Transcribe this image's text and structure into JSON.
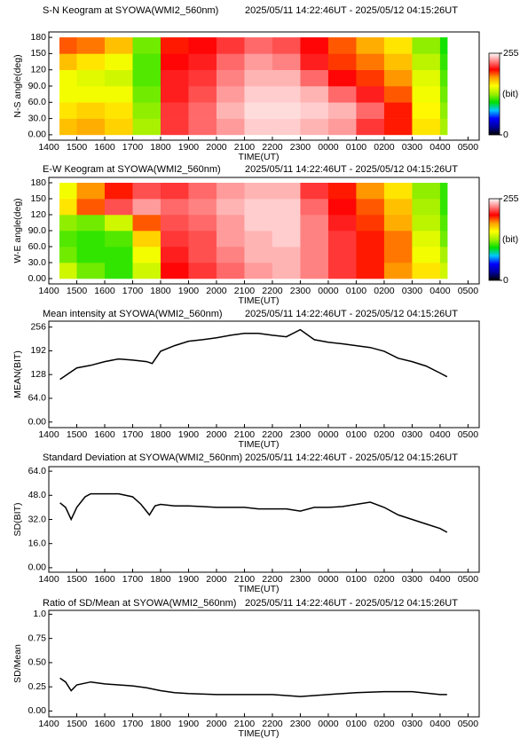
{
  "chart_data": [
    {
      "type": "heatmap",
      "title": "S-N Keogram at SYOWA(WMI2_560nm)",
      "subtitle": "2025/05/11 14:22:46UT - 2025/05/12 04:15:26UT",
      "xlabel": "TIME(UT)",
      "ylabel": "N-S angle(deg)",
      "x_bins": [
        14.38,
        15,
        16,
        17,
        18,
        19,
        20,
        21,
        22,
        23,
        24,
        25,
        26,
        27,
        28,
        28.26
      ],
      "y_bins": [
        0,
        30,
        60,
        90,
        120,
        150,
        180
      ],
      "values": [
        [
          170,
          175,
          165,
          130,
          215,
          225,
          235,
          245,
          245,
          240,
          235,
          215,
          200,
          160,
          130
        ],
        [
          160,
          165,
          160,
          125,
          215,
          225,
          240,
          248,
          248,
          245,
          240,
          225,
          200,
          155,
          125
        ],
        [
          150,
          150,
          150,
          120,
          210,
          220,
          235,
          245,
          245,
          240,
          225,
          210,
          190,
          150,
          120
        ],
        [
          150,
          145,
          140,
          115,
          210,
          215,
          230,
          240,
          240,
          225,
          205,
          195,
          180,
          145,
          115
        ],
        [
          170,
          160,
          150,
          115,
          205,
          210,
          225,
          235,
          230,
          210,
          195,
          185,
          170,
          135,
          110
        ],
        [
          190,
          185,
          170,
          120,
          200,
          205,
          215,
          225,
          220,
          205,
          190,
          175,
          160,
          125,
          105
        ]
      ],
      "clim": [
        0,
        255
      ],
      "colorbar": {
        "ticks": [
          0,
          255
        ],
        "label": "(bit)"
      },
      "colormap": [
        "#000000",
        "#0000a0",
        "#0000ff",
        "#00c8ff",
        "#00e000",
        "#a0f000",
        "#ffff00",
        "#ffa000",
        "#ff0000",
        "#ff8080",
        "#ffffff"
      ],
      "xlim": [
        14,
        29.4
      ],
      "ylim": [
        -10,
        190
      ],
      "xticks": [
        {
          "value": 14,
          "label": "1400"
        },
        {
          "value": 15,
          "label": "1500"
        },
        {
          "value": 16,
          "label": "1600"
        },
        {
          "value": 17,
          "label": "1700"
        },
        {
          "value": 18,
          "label": "1800"
        },
        {
          "value": 19,
          "label": "1900"
        },
        {
          "value": 20,
          "label": "2000"
        },
        {
          "value": 21,
          "label": "2100"
        },
        {
          "value": 22,
          "label": "2200"
        },
        {
          "value": 23,
          "label": "2300"
        },
        {
          "value": 24,
          "label": "0000"
        },
        {
          "value": 25,
          "label": "0100"
        },
        {
          "value": 26,
          "label": "0200"
        },
        {
          "value": 27,
          "label": "0300"
        },
        {
          "value": 28,
          "label": "0400"
        },
        {
          "value": 29,
          "label": "0500"
        }
      ],
      "yticks": [
        {
          "value": 0,
          "label": "0.00"
        },
        {
          "value": 30,
          "label": "30.0"
        },
        {
          "value": 60,
          "label": "60.0"
        },
        {
          "value": 90,
          "label": "90.0"
        },
        120,
        150,
        180
      ]
    },
    {
      "type": "heatmap",
      "title": "E-W Keogram at SYOWA(WMI2_560nm)",
      "subtitle": "2025/05/11 14:22:46UT - 2025/05/12 04:15:26UT",
      "xlabel": "TIME(UT)",
      "ylabel": "W-E angle(deg)",
      "x_bins": [
        14.38,
        15,
        16,
        17,
        18,
        19,
        20,
        21,
        22,
        23,
        24,
        25,
        26,
        27,
        28,
        28.26
      ],
      "y_bins": [
        0,
        30,
        60,
        90,
        120,
        150,
        180
      ],
      "values": [
        [
          140,
          120,
          110,
          140,
          205,
          215,
          225,
          235,
          240,
          230,
          215,
          200,
          180,
          160,
          140
        ],
        [
          120,
          110,
          110,
          150,
          210,
          220,
          230,
          240,
          240,
          230,
          215,
          200,
          185,
          150,
          130
        ],
        [
          115,
          110,
          115,
          165,
          215,
          220,
          235,
          240,
          245,
          230,
          215,
          200,
          185,
          145,
          120
        ],
        [
          125,
          120,
          140,
          190,
          220,
          225,
          235,
          245,
          245,
          230,
          210,
          195,
          175,
          135,
          115
        ],
        [
          160,
          190,
          220,
          235,
          225,
          230,
          240,
          245,
          245,
          225,
          205,
          190,
          170,
          130,
          110
        ],
        [
          150,
          180,
          200,
          220,
          215,
          225,
          235,
          240,
          240,
          215,
          200,
          180,
          160,
          125,
          110
        ]
      ],
      "clim": [
        0,
        255
      ],
      "colorbar": {
        "ticks": [
          0,
          255
        ],
        "label": "(bit)"
      },
      "colormap": [
        "#000000",
        "#0000a0",
        "#0000ff",
        "#00c8ff",
        "#00e000",
        "#a0f000",
        "#ffff00",
        "#ffa000",
        "#ff0000",
        "#ff8080",
        "#ffffff"
      ],
      "xlim": [
        14,
        29.4
      ],
      "ylim": [
        -10,
        190
      ],
      "xticks": [
        {
          "value": 14,
          "label": "1400"
        },
        {
          "value": 15,
          "label": "1500"
        },
        {
          "value": 16,
          "label": "1600"
        },
        {
          "value": 17,
          "label": "1700"
        },
        {
          "value": 18,
          "label": "1800"
        },
        {
          "value": 19,
          "label": "1900"
        },
        {
          "value": 20,
          "label": "2000"
        },
        {
          "value": 21,
          "label": "2100"
        },
        {
          "value": 22,
          "label": "2200"
        },
        {
          "value": 23,
          "label": "2300"
        },
        {
          "value": 24,
          "label": "0000"
        },
        {
          "value": 25,
          "label": "0100"
        },
        {
          "value": 26,
          "label": "0200"
        },
        {
          "value": 27,
          "label": "0300"
        },
        {
          "value": 28,
          "label": "0400"
        },
        {
          "value": 29,
          "label": "0500"
        }
      ],
      "yticks": [
        {
          "value": 0,
          "label": "0.00"
        },
        {
          "value": 30,
          "label": "30.0"
        },
        {
          "value": 60,
          "label": "60.0"
        },
        {
          "value": 90,
          "label": "90.0"
        },
        120,
        150,
        180
      ]
    },
    {
      "type": "line",
      "title": "Mean intensity at SYOWA(WMI2_560nm)",
      "subtitle": "2025/05/11 14:22:46UT - 2025/05/12 04:15:26UT",
      "xlabel": "TIME(UT)",
      "ylabel": "MEAN(BIT)",
      "color": "#000000",
      "x": [
        14.4,
        15,
        15.5,
        16,
        16.5,
        17,
        17.5,
        17.7,
        18,
        18.5,
        19,
        19.5,
        20,
        20.5,
        21,
        21.5,
        22,
        22.5,
        23,
        23.5,
        24,
        24.5,
        25,
        25.5,
        26,
        26.5,
        27,
        27.5,
        28,
        28.25
      ],
      "values": [
        115,
        146,
        153,
        163,
        170,
        167,
        163,
        158,
        191,
        206,
        218,
        222,
        227,
        234,
        239,
        239,
        234,
        230,
        249,
        222,
        215,
        211,
        206,
        201,
        191,
        172,
        163,
        151,
        132,
        122
      ],
      "xlim": [
        14,
        29.4
      ],
      "ylim": [
        -15,
        272
      ],
      "xticks": [
        {
          "value": 14,
          "label": "1400"
        },
        {
          "value": 15,
          "label": "1500"
        },
        {
          "value": 16,
          "label": "1600"
        },
        {
          "value": 17,
          "label": "1700"
        },
        {
          "value": 18,
          "label": "1800"
        },
        {
          "value": 19,
          "label": "1900"
        },
        {
          "value": 20,
          "label": "2000"
        },
        {
          "value": 21,
          "label": "2100"
        },
        {
          "value": 22,
          "label": "2200"
        },
        {
          "value": 23,
          "label": "2300"
        },
        {
          "value": 24,
          "label": "0000"
        },
        {
          "value": 25,
          "label": "0100"
        },
        {
          "value": 26,
          "label": "0200"
        },
        {
          "value": 27,
          "label": "0300"
        },
        {
          "value": 28,
          "label": "0400"
        },
        {
          "value": 29,
          "label": "0500"
        }
      ],
      "yticks": [
        {
          "value": 0,
          "label": "0.00"
        },
        {
          "value": 64,
          "label": "64.0"
        },
        128,
        192,
        256
      ]
    },
    {
      "type": "line",
      "title": "Standard Deviation at SYOWA(WMI2_560nm)",
      "subtitle": "2025/05/11 14:22:46UT - 2025/05/12 04:15:26UT",
      "xlabel": "TIME(UT)",
      "ylabel": "SD(BIT)",
      "color": "#000000",
      "x": [
        14.4,
        14.6,
        14.8,
        15,
        15.3,
        15.5,
        16,
        16.5,
        17,
        17.3,
        17.6,
        17.8,
        18,
        18.5,
        19,
        19.5,
        20,
        20.5,
        21,
        21.5,
        22,
        22.5,
        23,
        23.5,
        24,
        24.5,
        25,
        25.5,
        26,
        26.5,
        27,
        27.5,
        28,
        28.25
      ],
      "values": [
        43,
        40,
        32,
        40,
        47,
        49,
        49,
        49,
        47,
        42,
        35,
        41,
        42,
        41,
        41,
        40.5,
        40,
        40,
        40,
        39,
        39,
        39,
        37.5,
        40,
        40,
        40.5,
        42,
        43.5,
        40,
        35,
        32,
        29,
        26,
        23.5
      ],
      "xlim": [
        14,
        29.4
      ],
      "ylim": [
        -3,
        67
      ],
      "xticks": [
        {
          "value": 14,
          "label": "1400"
        },
        {
          "value": 15,
          "label": "1500"
        },
        {
          "value": 16,
          "label": "1600"
        },
        {
          "value": 17,
          "label": "1700"
        },
        {
          "value": 18,
          "label": "1800"
        },
        {
          "value": 19,
          "label": "1900"
        },
        {
          "value": 20,
          "label": "2000"
        },
        {
          "value": 21,
          "label": "2100"
        },
        {
          "value": 22,
          "label": "2200"
        },
        {
          "value": 23,
          "label": "2300"
        },
        {
          "value": 24,
          "label": "0000"
        },
        {
          "value": 25,
          "label": "0100"
        },
        {
          "value": 26,
          "label": "0200"
        },
        {
          "value": 27,
          "label": "0300"
        },
        {
          "value": 28,
          "label": "0400"
        },
        {
          "value": 29,
          "label": "0500"
        }
      ],
      "yticks": [
        {
          "value": 0,
          "label": "0.00"
        },
        {
          "value": 16,
          "label": "16.0"
        },
        {
          "value": 32,
          "label": "32.0"
        },
        {
          "value": 48,
          "label": "48.0"
        },
        {
          "value": 64,
          "label": "64.0"
        }
      ]
    },
    {
      "type": "line",
      "title": "Ratio of SD/Mean at SYOWA(WMI2_560nm)",
      "subtitle": "2025/05/11 14:22:46UT - 2025/05/12 04:15:26UT",
      "xlabel": "TIME(UT)",
      "ylabel": "SD/Mean",
      "color": "#000000",
      "x": [
        14.4,
        14.6,
        14.8,
        15,
        15.5,
        16,
        16.5,
        17,
        17.5,
        18,
        18.5,
        19,
        20,
        21,
        22,
        23,
        24,
        25,
        26,
        27,
        28,
        28.25
      ],
      "values": [
        0.34,
        0.3,
        0.21,
        0.27,
        0.3,
        0.28,
        0.27,
        0.26,
        0.24,
        0.21,
        0.19,
        0.18,
        0.17,
        0.17,
        0.17,
        0.15,
        0.17,
        0.19,
        0.2,
        0.2,
        0.17,
        0.17
      ],
      "xlim": [
        14,
        29.4
      ],
      "ylim": [
        -0.06,
        1.04
      ],
      "xticks": [
        {
          "value": 14,
          "label": "1400"
        },
        {
          "value": 15,
          "label": "1500"
        },
        {
          "value": 16,
          "label": "1600"
        },
        {
          "value": 17,
          "label": "1700"
        },
        {
          "value": 18,
          "label": "1800"
        },
        {
          "value": 19,
          "label": "1900"
        },
        {
          "value": 20,
          "label": "2000"
        },
        {
          "value": 21,
          "label": "2100"
        },
        {
          "value": 22,
          "label": "2200"
        },
        {
          "value": 23,
          "label": "2300"
        },
        {
          "value": 24,
          "label": "0000"
        },
        {
          "value": 25,
          "label": "0100"
        },
        {
          "value": 26,
          "label": "0200"
        },
        {
          "value": 27,
          "label": "0300"
        },
        {
          "value": 28,
          "label": "0400"
        },
        {
          "value": 29,
          "label": "0500"
        }
      ],
      "yticks": [
        {
          "value": 0,
          "label": "0.00"
        },
        0.25,
        {
          "value": 0.5,
          "label": "0.50"
        },
        0.75,
        {
          "value": 1,
          "label": "1.0"
        }
      ]
    }
  ]
}
